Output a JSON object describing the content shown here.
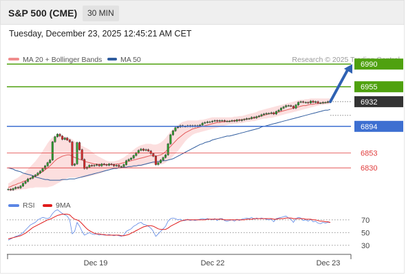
{
  "header": {
    "symbol": "S&P 500 (CME)",
    "timeframe": "30 MIN",
    "timestamp": "Tuesday, December 23, 2025 12:45:21 AM CET"
  },
  "legend": {
    "ma20_label": "MA 20 + Bollinger Bands",
    "ma50_label": "MA 50",
    "credit": "Research © 2025 Trading Central",
    "rsi_label": "RSI",
    "ma9_label": "9MA"
  },
  "colors": {
    "up_candle": "#2e9e2e",
    "down_candle": "#d42b2b",
    "ma20": "#e35a5a",
    "bollinger_fill": "#fbd9d9",
    "ma50": "#2f5c9e",
    "resistance": "#4fa10f",
    "support_pivot": "#3d6fd1",
    "support": "#e03b3b",
    "last_price_tag": "#333333",
    "rsi_line": "#5b86e5",
    "rsi_ma": "#e01b1b",
    "arrow": "#2f62b3"
  },
  "chart_data": [
    {
      "type": "candlestick",
      "name": "S&P 500 (CME) 30 MIN",
      "x_ticks": [
        "Dec 19",
        "Dec 22",
        "Dec 23"
      ],
      "ylim": [
        6792,
        7004
      ],
      "last_price": 6932,
      "levels": [
        {
          "value": 6990,
          "label": "6990",
          "kind": "resistance"
        },
        {
          "value": 6955,
          "label": "6955",
          "kind": "resistance"
        },
        {
          "value": 6894,
          "label": "6894",
          "kind": "pivot"
        },
        {
          "value": 6853,
          "label": "6853",
          "kind": "support"
        },
        {
          "value": 6830,
          "label": "6830",
          "kind": "support"
        }
      ],
      "close": [
        6797,
        6796,
        6798,
        6800,
        6799,
        6802,
        6806,
        6809,
        6813,
        6814,
        6817,
        6819,
        6822,
        6825,
        6829,
        6833,
        6838,
        6842,
        6870,
        6878,
        6882,
        6879,
        6874,
        6876,
        6873,
        6870,
        6834,
        6836,
        6869,
        6858,
        6843,
        6829,
        6831,
        6834,
        6833,
        6834,
        6835,
        6833,
        6836,
        6835,
        6834,
        6836,
        6835,
        6833,
        6834,
        6832,
        6832,
        6835,
        6841,
        6843,
        6845,
        6849,
        6853,
        6857,
        6859,
        6857,
        6858,
        6856,
        6852,
        6848,
        6835,
        6838,
        6842,
        6846,
        6850,
        6867,
        6881,
        6887,
        6892,
        6893,
        6895,
        6894,
        6894,
        6895,
        6894,
        6895,
        6894,
        6895,
        6896,
        6899,
        6900,
        6901,
        6901,
        6902,
        6903,
        6902,
        6903,
        6903,
        6902,
        6902,
        6902,
        6903,
        6902,
        6904,
        6903,
        6904,
        6905,
        6906,
        6906,
        6908,
        6907,
        6909,
        6910,
        6912,
        6913,
        6914,
        6914,
        6915,
        6913,
        6917,
        6919,
        6922,
        6924,
        6926,
        6926,
        6925,
        6922,
        6927,
        6931,
        6932,
        6931,
        6931,
        6930,
        6933,
        6931,
        6932,
        6930,
        6930,
        6931,
        6931,
        6932,
        6932
      ],
      "ma20": [
        6800,
        6801,
        6803,
        6804,
        6806,
        6807,
        6809,
        6810,
        6812,
        6814,
        6815,
        6817,
        6819,
        6822,
        6824,
        6827,
        6830,
        6833,
        6837,
        6841,
        6844,
        6846,
        6848,
        6849,
        6850,
        6850,
        6848,
        6846,
        6845,
        6843,
        6842,
        6840,
        6839,
        6838,
        6837,
        6836,
        6836,
        6835,
        6835,
        6835,
        6835,
        6835,
        6835,
        6835,
        6836,
        6836,
        6837,
        6838,
        6839,
        6840,
        6841,
        6842,
        6843,
        6844,
        6845,
        6846,
        6847,
        6848,
        6849,
        6849,
        6848,
        6849,
        6850,
        6852,
        6855,
        6859,
        6863,
        6867,
        6871,
        6875,
        6878,
        6881,
        6884,
        6886,
        6888,
        6890,
        6891,
        6892,
        6893,
        6894,
        6895,
        6896,
        6897,
        6898,
        6899,
        6900,
        6900,
        6901,
        6901,
        6902,
        6902,
        6902,
        6903,
        6903,
        6904,
        6904,
        6905,
        6905,
        6906,
        6906,
        6907,
        6908,
        6909,
        6910,
        6911,
        6912,
        6913,
        6914,
        6914,
        6915,
        6916,
        6917,
        6918,
        6919,
        6920,
        6921,
        6922,
        6923,
        6924,
        6925,
        6926,
        6926,
        6927,
        6928,
        6928,
        6929,
        6929,
        6930,
        6930,
        6930,
        6931,
        6931
      ],
      "bb_upper": [
        6806,
        6808,
        6811,
        6813,
        6815,
        6818,
        6821,
        6824,
        6828,
        6832,
        6836,
        6840,
        6845,
        6850,
        6856,
        6862,
        6868,
        6873,
        6877,
        6879,
        6880,
        6880,
        6879,
        6878,
        6877,
        6876,
        6874,
        6871,
        6868,
        6866,
        6864,
        6862,
        6860,
        6858,
        6855,
        6852,
        6849,
        6847,
        6845,
        6843,
        6841,
        6840,
        6840,
        6840,
        6841,
        6842,
        6844,
        6846,
        6849,
        6852,
        6855,
        6858,
        6861,
        6863,
        6865,
        6866,
        6867,
        6867,
        6867,
        6866,
        6866,
        6867,
        6869,
        6872,
        6876,
        6881,
        6886,
        6890,
        6893,
        6896,
        6899,
        6901,
        6902,
        6903,
        6903,
        6903,
        6903,
        6903,
        6904,
        6904,
        6905,
        6906,
        6907,
        6908,
        6908,
        6908,
        6908,
        6908,
        6908,
        6908,
        6908,
        6908,
        6909,
        6909,
        6910,
        6910,
        6911,
        6912,
        6913,
        6914,
        6915,
        6916,
        6918,
        6919,
        6920,
        6921,
        6922,
        6923,
        6924,
        6925,
        6926,
        6927,
        6928,
        6929,
        6930,
        6931,
        6932,
        6933,
        6934,
        6935,
        6935,
        6936,
        6936,
        6937,
        6937,
        6937,
        6937,
        6937,
        6937,
        6937,
        6937,
        6937
      ],
      "bb_lower": [
        6794,
        6794,
        6795,
        6795,
        6796,
        6796,
        6797,
        6797,
        6798,
        6799,
        6799,
        6800,
        6800,
        6800,
        6800,
        6800,
        6800,
        6801,
        6802,
        6804,
        6806,
        6808,
        6810,
        6812,
        6814,
        6815,
        6815,
        6815,
        6815,
        6815,
        6815,
        6815,
        6816,
        6817,
        6818,
        6819,
        6820,
        6821,
        6822,
        6824,
        6826,
        6828,
        6829,
        6830,
        6830,
        6830,
        6830,
        6830,
        6830,
        6830,
        6830,
        6831,
        6831,
        6832,
        6833,
        6834,
        6835,
        6836,
        6837,
        6836,
        6835,
        6835,
        6835,
        6836,
        6838,
        6841,
        6844,
        6848,
        6852,
        6856,
        6861,
        6866,
        6871,
        6875,
        6878,
        6881,
        6883,
        6884,
        6885,
        6886,
        6887,
        6888,
        6889,
        6890,
        6891,
        6892,
        6893,
        6894,
        6895,
        6896,
        6897,
        6897,
        6898,
        6898,
        6899,
        6899,
        6900,
        6901,
        6901,
        6902,
        6902,
        6903,
        6904,
        6905,
        6906,
        6906,
        6907,
        6907,
        6908,
        6909,
        6910,
        6911,
        6912,
        6913,
        6914,
        6915,
        6916,
        6917,
        6918,
        6919,
        6920,
        6921,
        6922,
        6923,
        6924,
        6925,
        6926,
        6927,
        6927,
        6928,
        6928,
        6929
      ],
      "ma50": [
        6830,
        6829,
        6828,
        6826,
        6825,
        6824,
        6822,
        6821,
        6820,
        6819,
        6818,
        6816,
        6815,
        6814,
        6813,
        6812,
        6812,
        6811,
        6811,
        6811,
        6811,
        6811,
        6812,
        6812,
        6812,
        6813,
        6813,
        6813,
        6814,
        6815,
        6816,
        6817,
        6818,
        6819,
        6820,
        6821,
        6822,
        6823,
        6824,
        6825,
        6826,
        6827,
        6828,
        6829,
        6829,
        6830,
        6830,
        6831,
        6831,
        6832,
        6832,
        6833,
        6833,
        6834,
        6834,
        6835,
        6836,
        6837,
        6838,
        6839,
        6839,
        6840,
        6840,
        6841,
        6841,
        6842,
        6843,
        6844,
        6846,
        6848,
        6850,
        6852,
        6854,
        6856,
        6858,
        6860,
        6862,
        6864,
        6866,
        6867,
        6869,
        6870,
        6871,
        6873,
        6874,
        6875,
        6876,
        6877,
        6878,
        6879,
        6879,
        6880,
        6881,
        6882,
        6883,
        6884,
        6885,
        6886,
        6887,
        6888,
        6889,
        6890,
        6891,
        6893,
        6894,
        6895,
        6896,
        6897,
        6898,
        6899,
        6900,
        6901,
        6902,
        6903,
        6904,
        6905,
        6906,
        6907,
        6908,
        6909,
        6910,
        6911,
        6912,
        6913,
        6914,
        6915,
        6916,
        6917,
        6918,
        6919,
        6919,
        6920
      ]
    },
    {
      "type": "line",
      "name": "RSI",
      "ylim": [
        20,
        85
      ],
      "y_ticks": [
        70,
        50,
        30
      ],
      "rsi": [
        38,
        40,
        42,
        44,
        45,
        47,
        50,
        54,
        58,
        62,
        64,
        66,
        70,
        72,
        74,
        73,
        72,
        74,
        80,
        84,
        86,
        83,
        80,
        78,
        76,
        70,
        48,
        52,
        66,
        60,
        52,
        46,
        48,
        50,
        48,
        47,
        48,
        46,
        47,
        46,
        46,
        47,
        46,
        45,
        46,
        45,
        44,
        46,
        52,
        54,
        56,
        60,
        62,
        65,
        66,
        63,
        62,
        60,
        57,
        52,
        44,
        48,
        52,
        56,
        60,
        68,
        72,
        73,
        72,
        70,
        71,
        69,
        69,
        71,
        69,
        70,
        69,
        70,
        71,
        72,
        71,
        72,
        71,
        70,
        72,
        69,
        72,
        72,
        69,
        68,
        69,
        70,
        68,
        71,
        69,
        71,
        72,
        73,
        72,
        74,
        71,
        73,
        72,
        73,
        72,
        71,
        70,
        71,
        67,
        72,
        73,
        74,
        75,
        76,
        73,
        71,
        66,
        72,
        74,
        73,
        69,
        70,
        68,
        71,
        67,
        68,
        65,
        64,
        66,
        65,
        66,
        66
      ],
      "rsi_ma9": [
        40,
        41,
        42,
        43,
        44,
        45,
        47,
        49,
        52,
        55,
        58,
        60,
        62,
        64,
        66,
        68,
        70,
        71,
        73,
        75,
        77,
        78,
        79,
        79,
        79,
        78,
        74,
        71,
        70,
        68,
        64,
        60,
        56,
        53,
        51,
        49,
        48,
        48,
        47,
        47,
        46,
        46,
        46,
        46,
        46,
        46,
        45,
        45,
        46,
        47,
        49,
        51,
        53,
        55,
        57,
        59,
        60,
        61,
        61,
        60,
        58,
        56,
        55,
        55,
        55,
        57,
        60,
        62,
        64,
        66,
        68,
        69,
        70,
        70,
        70,
        70,
        70,
        70,
        70,
        70,
        70,
        71,
        71,
        71,
        71,
        71,
        71,
        71,
        70,
        70,
        70,
        70,
        70,
        70,
        70,
        70,
        70,
        71,
        71,
        71,
        72,
        72,
        72,
        72,
        72,
        72,
        72,
        72,
        71,
        71,
        72,
        72,
        72,
        73,
        73,
        73,
        72,
        72,
        72,
        72,
        72,
        71,
        71,
        71,
        70,
        70,
        69,
        68,
        68,
        67,
        67,
        66
      ]
    }
  ]
}
